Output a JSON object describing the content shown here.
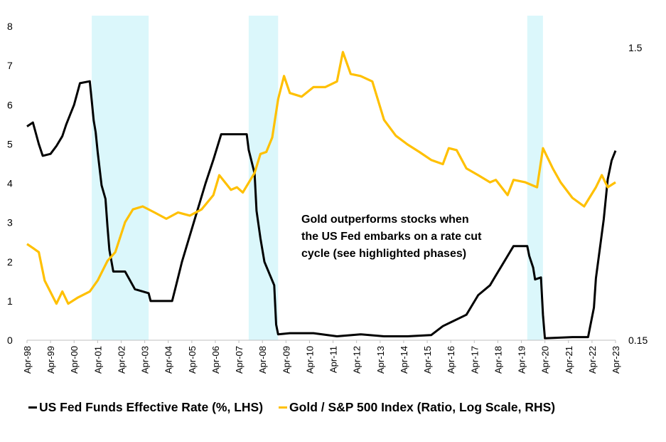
{
  "chart_data": {
    "type": "line",
    "x_tick_labels": [
      "Apr-98",
      "Apr-99",
      "Apr-00",
      "Apr-01",
      "Apr-02",
      "Apr-03",
      "Apr-04",
      "Apr-05",
      "Apr-06",
      "Apr-07",
      "Apr-08",
      "Apr-09",
      "Apr-10",
      "Apr-11",
      "Apr-12",
      "Apr-13",
      "Apr-14",
      "Apr-15",
      "Apr-16",
      "Apr-17",
      "Apr-18",
      "Apr-19",
      "Apr-20",
      "Apr-21",
      "Apr-22",
      "Apr-23"
    ],
    "x_range": [
      "Apr-98",
      "Apr-23"
    ],
    "left_axis": {
      "ticks": [
        "0",
        "1",
        "2",
        "3",
        "4",
        "5",
        "6",
        "7",
        "8"
      ],
      "ylim": [
        0,
        8
      ]
    },
    "right_axis": {
      "scale": "log",
      "ticks": [
        "0.15",
        "1.5"
      ],
      "ylim": [
        0.15,
        1.5
      ]
    },
    "highlighted_periods": [
      {
        "start": "Jan-01",
        "end": "Jun-03"
      },
      {
        "start": "Sep-07",
        "end": "Dec-08"
      },
      {
        "start": "Jul-19",
        "end": "Mar-20"
      }
    ],
    "series": [
      {
        "name": "US Fed Funds Effective Rate (%, LHS)",
        "color": "#000000",
        "axis": "left",
        "points": [
          [
            "1998-04",
            5.45
          ],
          [
            "1998-07",
            5.55
          ],
          [
            "1998-10",
            5.0
          ],
          [
            "1998-12",
            4.7
          ],
          [
            "1999-04",
            4.75
          ],
          [
            "1999-07",
            4.95
          ],
          [
            "1999-10",
            5.2
          ],
          [
            "1999-12",
            5.5
          ],
          [
            "2000-02",
            5.75
          ],
          [
            "2000-04",
            6.0
          ],
          [
            "2000-07",
            6.55
          ],
          [
            "2000-12",
            6.6
          ],
          [
            "2001-01",
            6.1
          ],
          [
            "2001-02",
            5.6
          ],
          [
            "2001-03",
            5.3
          ],
          [
            "2001-04",
            4.8
          ],
          [
            "2001-06",
            3.95
          ],
          [
            "2001-08",
            3.6
          ],
          [
            "2001-09",
            2.9
          ],
          [
            "2001-10",
            2.3
          ],
          [
            "2001-12",
            1.75
          ],
          [
            "2002-06",
            1.75
          ],
          [
            "2002-11",
            1.3
          ],
          [
            "2003-06",
            1.2
          ],
          [
            "2003-07",
            1.0
          ],
          [
            "2004-06",
            1.0
          ],
          [
            "2004-08",
            1.4
          ],
          [
            "2004-11",
            2.0
          ],
          [
            "2005-02",
            2.5
          ],
          [
            "2005-05",
            3.0
          ],
          [
            "2005-08",
            3.5
          ],
          [
            "2005-11",
            4.0
          ],
          [
            "2006-03",
            4.6
          ],
          [
            "2006-07",
            5.25
          ],
          [
            "2007-08",
            5.25
          ],
          [
            "2007-09",
            4.85
          ],
          [
            "2007-12",
            4.25
          ],
          [
            "2008-01",
            3.3
          ],
          [
            "2008-03",
            2.6
          ],
          [
            "2008-05",
            2.0
          ],
          [
            "2008-10",
            1.4
          ],
          [
            "2008-11",
            0.4
          ],
          [
            "2008-12",
            0.15
          ],
          [
            "2009-06",
            0.18
          ],
          [
            "2010-06",
            0.18
          ],
          [
            "2011-06",
            0.1
          ],
          [
            "2012-06",
            0.15
          ],
          [
            "2013-06",
            0.1
          ],
          [
            "2014-06",
            0.1
          ],
          [
            "2015-06",
            0.13
          ],
          [
            "2015-12",
            0.36
          ],
          [
            "2016-12",
            0.65
          ],
          [
            "2017-03",
            0.9
          ],
          [
            "2017-06",
            1.15
          ],
          [
            "2017-12",
            1.4
          ],
          [
            "2018-03",
            1.65
          ],
          [
            "2018-06",
            1.9
          ],
          [
            "2018-09",
            2.15
          ],
          [
            "2018-12",
            2.4
          ],
          [
            "2019-07",
            2.4
          ],
          [
            "2019-08",
            2.15
          ],
          [
            "2019-10",
            1.85
          ],
          [
            "2019-11",
            1.55
          ],
          [
            "2020-02",
            1.6
          ],
          [
            "2020-03",
            0.65
          ],
          [
            "2020-04",
            0.05
          ],
          [
            "2021-06",
            0.08
          ],
          [
            "2022-02",
            0.08
          ],
          [
            "2022-03",
            0.33
          ],
          [
            "2022-05",
            0.83
          ],
          [
            "2022-06",
            1.58
          ],
          [
            "2022-08",
            2.33
          ],
          [
            "2022-10",
            3.08
          ],
          [
            "2022-12",
            4.1
          ],
          [
            "2023-02",
            4.58
          ],
          [
            "2023-04",
            4.83
          ]
        ]
      },
      {
        "name": "Gold / S&P 500 Index (Ratio, Log Scale, RHS)",
        "color": "#FFC000",
        "axis": "right",
        "points": [
          [
            "1998-04",
            0.32
          ],
          [
            "1998-07",
            0.31
          ],
          [
            "1998-10",
            0.3
          ],
          [
            "1999-01",
            0.24
          ],
          [
            "1999-07",
            0.2
          ],
          [
            "1999-10",
            0.22
          ],
          [
            "2000-01",
            0.2
          ],
          [
            "2000-06",
            0.21
          ],
          [
            "2000-12",
            0.22
          ],
          [
            "2001-04",
            0.24
          ],
          [
            "2001-09",
            0.28
          ],
          [
            "2002-01",
            0.3
          ],
          [
            "2002-06",
            0.38
          ],
          [
            "2002-10",
            0.42
          ],
          [
            "2003-03",
            0.43
          ],
          [
            "2003-09",
            0.41
          ],
          [
            "2004-03",
            0.39
          ],
          [
            "2004-09",
            0.41
          ],
          [
            "2005-03",
            0.4
          ],
          [
            "2005-09",
            0.42
          ],
          [
            "2006-03",
            0.47
          ],
          [
            "2006-06",
            0.55
          ],
          [
            "2006-12",
            0.49
          ],
          [
            "2007-03",
            0.5
          ],
          [
            "2007-06",
            0.48
          ],
          [
            "2007-12",
            0.56
          ],
          [
            "2008-03",
            0.65
          ],
          [
            "2008-06",
            0.66
          ],
          [
            "2008-09",
            0.74
          ],
          [
            "2008-12",
            1.0
          ],
          [
            "2009-03",
            1.2
          ],
          [
            "2009-06",
            1.05
          ],
          [
            "2009-12",
            1.02
          ],
          [
            "2010-06",
            1.1
          ],
          [
            "2010-12",
            1.1
          ],
          [
            "2011-06",
            1.15
          ],
          [
            "2011-09",
            1.45
          ],
          [
            "2012-01",
            1.22
          ],
          [
            "2012-06",
            1.2
          ],
          [
            "2012-12",
            1.15
          ],
          [
            "2013-06",
            0.85
          ],
          [
            "2013-12",
            0.75
          ],
          [
            "2014-06",
            0.7
          ],
          [
            "2014-12",
            0.66
          ],
          [
            "2015-06",
            0.62
          ],
          [
            "2015-12",
            0.6
          ],
          [
            "2016-03",
            0.68
          ],
          [
            "2016-07",
            0.67
          ],
          [
            "2016-12",
            0.58
          ],
          [
            "2017-06",
            0.55
          ],
          [
            "2017-12",
            0.52
          ],
          [
            "2018-03",
            0.53
          ],
          [
            "2018-09",
            0.47
          ],
          [
            "2018-12",
            0.53
          ],
          [
            "2019-06",
            0.52
          ],
          [
            "2019-12",
            0.5
          ],
          [
            "2020-03",
            0.68
          ],
          [
            "2020-08",
            0.58
          ],
          [
            "2020-12",
            0.52
          ],
          [
            "2021-06",
            0.46
          ],
          [
            "2021-12",
            0.43
          ],
          [
            "2022-06",
            0.5
          ],
          [
            "2022-09",
            0.55
          ],
          [
            "2022-12",
            0.5
          ],
          [
            "2023-04",
            0.52
          ]
        ]
      }
    ],
    "annotation": [
      "Gold outperforms stocks when",
      "the US Fed embarks on a rate cut",
      "cycle (see highlighted phases)"
    ]
  },
  "legend": [
    {
      "label": "US Fed Funds Effective Rate (%, LHS)",
      "color": "#000000"
    },
    {
      "label": "Gold / S&P 500 Index (Ratio, Log Scale, RHS)",
      "color": "#FFC000"
    }
  ]
}
